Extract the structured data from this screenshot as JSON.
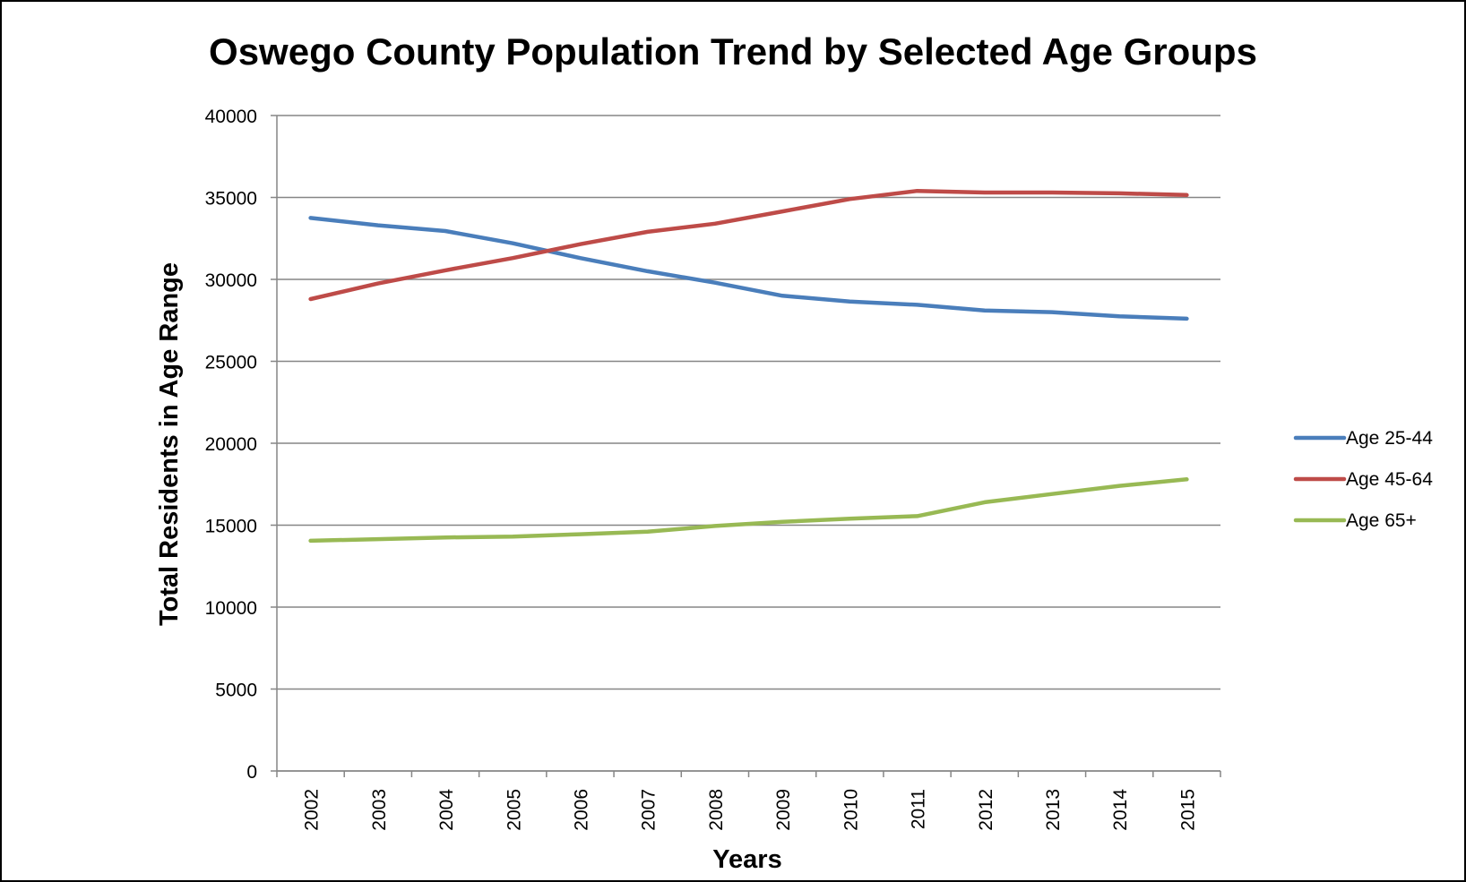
{
  "chart_data": {
    "type": "line",
    "title": "Oswego County Population Trend by Selected Age Groups",
    "xlabel": "Years",
    "ylabel": "Total Residents in Age Range",
    "x": [
      "2002",
      "2003",
      "2004",
      "2005",
      "2006",
      "2007",
      "2008",
      "2009",
      "2010",
      "2011",
      "2012",
      "2013",
      "2014",
      "2015"
    ],
    "ylim": [
      0,
      40000
    ],
    "yticks": [
      "0",
      "5000",
      "10000",
      "15000",
      "20000",
      "25000",
      "30000",
      "35000",
      "40000"
    ],
    "grid": true,
    "legend_position": "right",
    "series": [
      {
        "name": "Age 25-44",
        "color": "#4a7ebb",
        "values": [
          33750,
          33300,
          32950,
          32200,
          31300,
          30500,
          29800,
          29000,
          28650,
          28450,
          28100,
          28000,
          27750,
          27600
        ]
      },
      {
        "name": "Age 45-64",
        "color": "#be4b48",
        "values": [
          28800,
          29750,
          30550,
          31300,
          32150,
          32900,
          33400,
          34150,
          34900,
          35400,
          35300,
          35300,
          35250,
          35150
        ]
      },
      {
        "name": "Age 65+",
        "color": "#98b954",
        "values": [
          14050,
          14150,
          14250,
          14300,
          14450,
          14600,
          14950,
          15200,
          15400,
          15550,
          16400,
          16900,
          17400,
          17800
        ]
      }
    ]
  }
}
